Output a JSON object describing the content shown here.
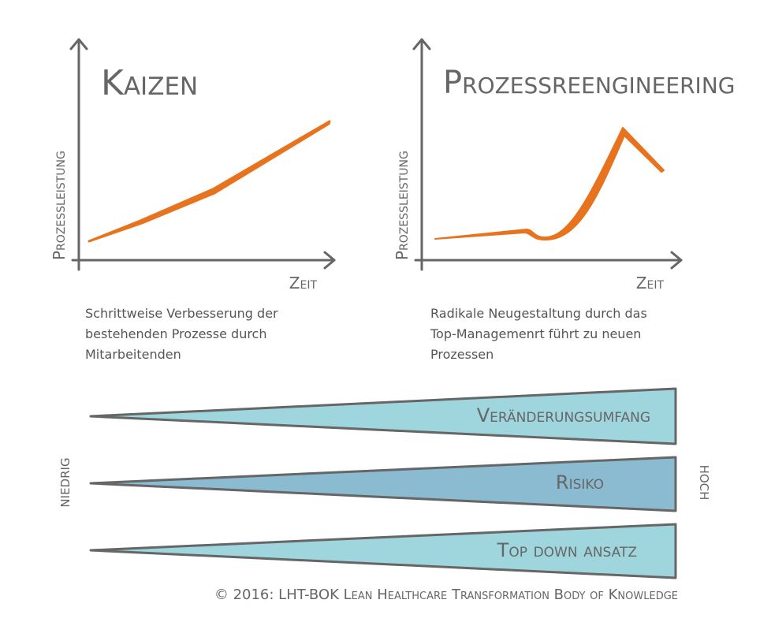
{
  "panels": [
    {
      "title": "Kaizen",
      "y_label": "Prozessleistung",
      "x_label": "Zeit",
      "description": [
        "Schrittweise Verbesserung der",
        "bestehenden Prozesse durch",
        "Mitarbeitenden"
      ]
    },
    {
      "title": "Prozessreengineering",
      "y_label": "Prozessleistung",
      "x_label": "Zeit",
      "description": [
        "Radikale Neugestaltung durch das",
        "Top-Managemenrt führt zu neuen",
        "Prozessen"
      ]
    }
  ],
  "wedges": {
    "low": "niedrig",
    "high": "hoch",
    "items": [
      "Veränderungsumfang",
      "Risiko",
      "Top down ansatz"
    ]
  },
  "footer": "© 2016: LHT-BOK Lean Healthcare Transformation Body of Knowledge"
}
